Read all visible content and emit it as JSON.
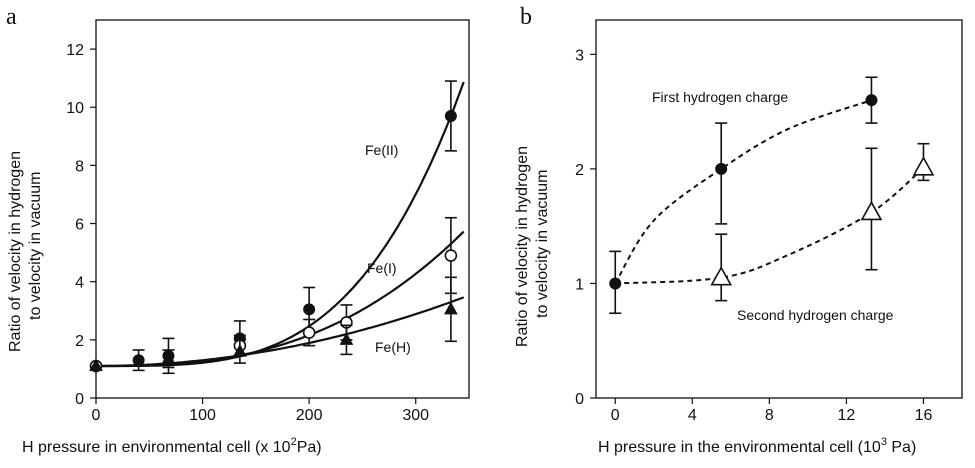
{
  "chart_data": [
    {
      "panel": "a",
      "type": "scatter",
      "xlabel": "H  pressure in environmental cell (x 10",
      "xlabel_sup": "2",
      "xlabel_end": "Pa)",
      "ylabel_line1": "Ratio of velocity in hydrogen",
      "ylabel_line2": "to velocity in vacuum",
      "xlim": [
        0,
        350
      ],
      "ylim": [
        0,
        13
      ],
      "xticks": [
        0,
        100,
        200,
        300
      ],
      "yticks": [
        0,
        2,
        4,
        6,
        8,
        10,
        12
      ],
      "curve_labels": [
        "Fe(II)",
        "Fe(I)",
        "Fe(H)"
      ],
      "series": [
        {
          "name": "Fe(II)",
          "marker": "filled-circle",
          "points": [
            {
              "x": 0,
              "y": 1.1,
              "err": 0
            },
            {
              "x": 40,
              "y": 1.3,
              "err": 0.35
            },
            {
              "x": 68,
              "y": 1.45,
              "err": 0.6
            },
            {
              "x": 135,
              "y": 2.05,
              "err": 0.6
            },
            {
              "x": 200,
              "y": 3.05,
              "err": 0.75
            },
            {
              "x": 333,
              "y": 9.7,
              "err": 1.2
            }
          ],
          "fit": {
            "a": 1.1,
            "c": 8.6,
            "p": 3.6
          }
        },
        {
          "name": "Fe(I)",
          "marker": "open-circle",
          "points": [
            {
              "x": 0,
              "y": 1.1,
              "err": 0
            },
            {
              "x": 135,
              "y": 1.8,
              "err": 0.35
            },
            {
              "x": 200,
              "y": 2.25,
              "err": 0.45
            },
            {
              "x": 235,
              "y": 2.6,
              "err": 0.6
            },
            {
              "x": 333,
              "y": 4.9,
              "err": 1.3
            }
          ],
          "fit": {
            "a": 1.1,
            "c": 4.2,
            "p": 2.7
          }
        },
        {
          "name": "Fe(H)",
          "marker": "filled-triangle",
          "points": [
            {
              "x": 0,
              "y": 1.1,
              "err": 0
            },
            {
              "x": 68,
              "y": 1.35,
              "err": 0.3
            },
            {
              "x": 135,
              "y": 1.6,
              "err": 0.4
            },
            {
              "x": 235,
              "y": 2.0,
              "err": 0.5
            },
            {
              "x": 333,
              "y": 3.05,
              "err": 1.1
            }
          ],
          "fit": {
            "a": 1.1,
            "c": 2.2,
            "p": 2.0
          }
        }
      ]
    },
    {
      "panel": "b",
      "type": "scatter",
      "xlabel": "H pressure in the environmental cell (10",
      "xlabel_sup": "3",
      "xlabel_end": " Pa)",
      "ylabel_line1": "Ratio of velocity in hydrogen",
      "ylabel_line2": "to velocity in vacuum",
      "xlim": [
        -1,
        18
      ],
      "ylim": [
        0,
        3.3
      ],
      "xticks": [
        0,
        4,
        8,
        12,
        16
      ],
      "yticks": [
        0,
        1,
        2,
        3
      ],
      "annotations": [
        "First hydrogen charge",
        "Second hydrogen charge"
      ],
      "series": [
        {
          "name": "First hydrogen charge",
          "marker": "filled-circle",
          "points": [
            {
              "x": 0,
              "y": 1.0,
              "lo": 0.74,
              "hi": 1.28
            },
            {
              "x": 5.5,
              "y": 2.0,
              "lo": 1.52,
              "hi": 2.4
            },
            {
              "x": 13.3,
              "y": 2.6,
              "lo": 2.4,
              "hi": 2.8
            }
          ],
          "curve": [
            [
              0,
              1.0
            ],
            [
              2,
              1.55
            ],
            [
              5.5,
              2.0
            ],
            [
              9,
              2.35
            ],
            [
              13.3,
              2.6
            ]
          ]
        },
        {
          "name": "Second hydrogen charge",
          "marker": "open-triangle",
          "points": [
            {
              "x": 5.5,
              "y": 1.05,
              "lo": 0.85,
              "hi": 1.43
            },
            {
              "x": 13.3,
              "y": 1.62,
              "lo": 1.12,
              "hi": 2.18
            },
            {
              "x": 16,
              "y": 2.01,
              "lo": 1.9,
              "hi": 2.22
            }
          ],
          "curve": [
            [
              0,
              1.0
            ],
            [
              5.5,
              1.05
            ],
            [
              9,
              1.25
            ],
            [
              13.3,
              1.62
            ],
            [
              16,
              2.01
            ]
          ]
        }
      ]
    }
  ]
}
